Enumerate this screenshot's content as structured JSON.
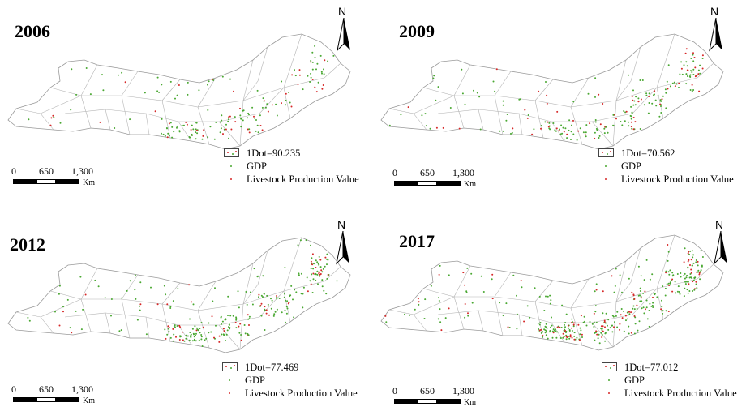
{
  "colors": {
    "gdp": "#4aa832",
    "livestock": "#d62828",
    "border": "#9a9a9a"
  },
  "icons": {
    "north_arrow": "north-arrow-icon"
  },
  "panels": [
    {
      "year": "2006",
      "north": "N",
      "dot_value": "1Dot=90.235",
      "gdp_label": "GDP",
      "livestock_label": "Livestock Production Value",
      "scale": [
        "0",
        "650",
        "1,300"
      ],
      "scale_unit": "Km",
      "dot_density": 1.0
    },
    {
      "year": "2009",
      "north": "N",
      "dot_value": "1Dot=70.562",
      "gdp_label": "GDP",
      "livestock_label": "Livestock Production Value",
      "scale": [
        "0",
        "650",
        "1,300"
      ],
      "scale_unit": "Km",
      "dot_density": 1.25
    },
    {
      "year": "2012",
      "north": "N",
      "dot_value": "1Dot=77.469",
      "gdp_label": "GDP",
      "livestock_label": "Livestock Production Value",
      "scale": [
        "0",
        "650",
        "1,300"
      ],
      "scale_unit": "Km",
      "dot_density": 1.6
    },
    {
      "year": "2017",
      "north": "N",
      "dot_value": "1Dot=77.012",
      "gdp_label": "GDP",
      "livestock_label": "Livestock Production Value",
      "scale": [
        "0",
        "650",
        "1,300"
      ],
      "scale_unit": "Km",
      "dot_density": 2.2
    }
  ]
}
